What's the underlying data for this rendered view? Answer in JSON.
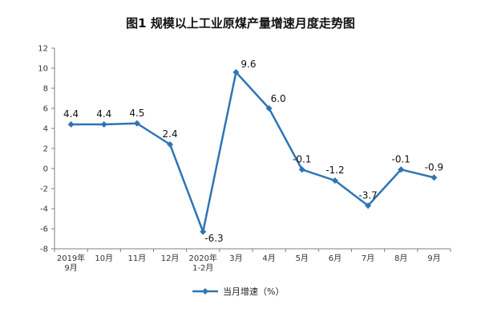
{
  "chart_data": {
    "type": "line",
    "title": "图1  规模以上工业原煤产量增速月度走势图",
    "categories": [
      [
        "2019年",
        "9月"
      ],
      [
        "10月"
      ],
      [
        "11月"
      ],
      [
        "12月"
      ],
      [
        "2020年",
        "1-2月"
      ],
      [
        "3月"
      ],
      [
        "4月"
      ],
      [
        "5月"
      ],
      [
        "6月"
      ],
      [
        "7月"
      ],
      [
        "8月"
      ],
      [
        "9月"
      ]
    ],
    "series": [
      {
        "name": "当月增速（%）",
        "values": [
          4.4,
          4.4,
          4.5,
          2.4,
          -6.3,
          9.6,
          6.0,
          -0.1,
          -1.2,
          -3.7,
          -0.1,
          -0.9
        ],
        "labels": [
          "4.4",
          "4.4",
          "4.5",
          "2.4",
          "-6.3",
          "9.6",
          "6.0",
          "-0.1",
          "-1.2",
          "-3.7",
          "-0.1",
          "-0.9"
        ],
        "color": "#2E75B6"
      }
    ],
    "xlabel": "",
    "ylabel": "",
    "ylim": [
      -8,
      12
    ],
    "yticks": [
      -8,
      -6,
      -4,
      -2,
      0,
      2,
      4,
      6,
      8,
      10,
      12
    ],
    "grid": false,
    "legend": "bottom-center"
  }
}
